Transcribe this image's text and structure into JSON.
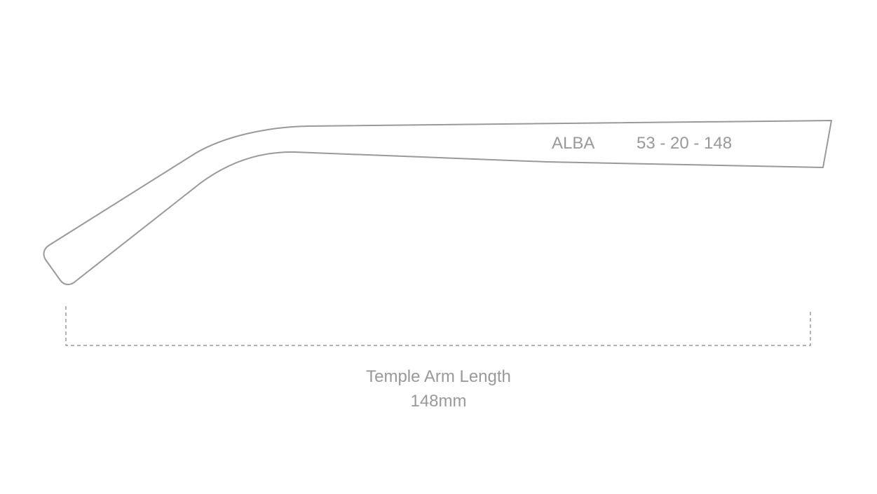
{
  "temple": {
    "model": "ALBA",
    "size": "53 - 20 - 148"
  },
  "measurement": {
    "label": "Temple Arm Length",
    "value": "148mm"
  },
  "colors": {
    "line": "#999999",
    "text": "#999999",
    "background": "#ffffff"
  }
}
